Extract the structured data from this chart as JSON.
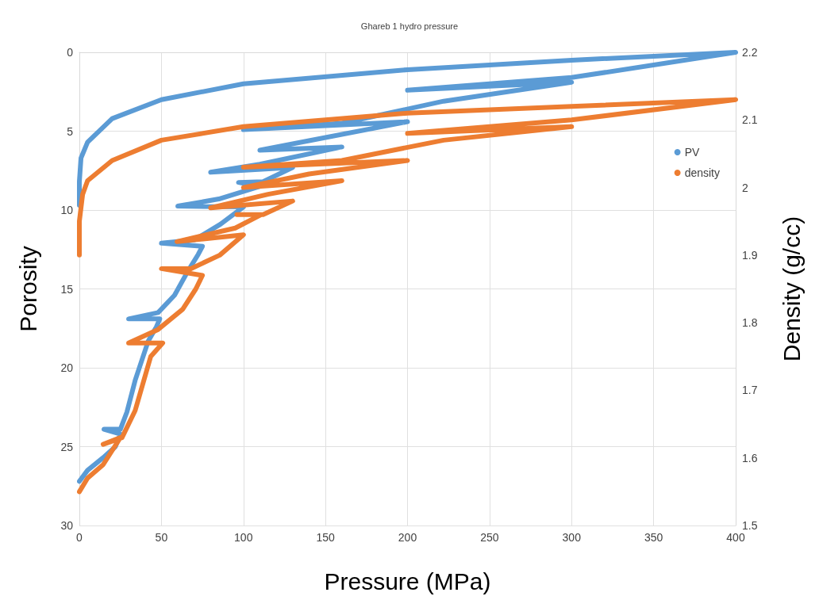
{
  "chart_data": {
    "type": "line",
    "title": "Ghareb 1 hydro pressure",
    "xlabel": "Pressure (MPa)",
    "ylabel": "Porosity",
    "y2label": "Density (g/cc)",
    "xlim": [
      0,
      400
    ],
    "xticks": [
      0,
      50,
      100,
      150,
      200,
      250,
      300,
      350,
      400
    ],
    "ylim": [
      30,
      0
    ],
    "yticks": [
      0,
      5,
      10,
      15,
      20,
      25,
      30
    ],
    "y2lim": [
      1.5,
      2.2
    ],
    "y2ticks": [
      1.5,
      1.6,
      1.7,
      1.8,
      1.9,
      2,
      2.1,
      2.2
    ],
    "grid": true,
    "legend": "right",
    "marker": "none",
    "line_style": "solid",
    "series": [
      {
        "name": "PV",
        "color": "#5b9bd5",
        "x": [
          0,
          5,
          14.5,
          22,
          25,
          15,
          25,
          29,
          34,
          42,
          47,
          49,
          30,
          48,
          58,
          66,
          72.5,
          75,
          50,
          70,
          86,
          100,
          60,
          85,
          110,
          97,
          112,
          130,
          80,
          110,
          160,
          110,
          140,
          200,
          100,
          160,
          222,
          300,
          200,
          300,
          400,
          300,
          200,
          100,
          50,
          20,
          5,
          1,
          0,
          0
        ],
        "values": [
          27.2,
          26.5,
          25.7,
          25,
          24.2,
          23.9,
          23.9,
          22.8,
          20.8,
          18.3,
          17.4,
          16.9,
          16.9,
          16.5,
          15.4,
          13.9,
          12.8,
          12.3,
          12.1,
          11.9,
          10.9,
          9.8,
          9.75,
          9.3,
          8.5,
          8.25,
          8.2,
          7.3,
          7.6,
          7.1,
          6,
          6.2,
          5.6,
          4.4,
          4.9,
          4.5,
          3.1,
          1.9,
          2.4,
          1.6,
          0,
          0.5,
          1.1,
          2,
          3,
          4.2,
          5.7,
          6.7,
          8.2,
          9.7
        ]
      },
      {
        "name": "density",
        "color": "#ed7d31",
        "axis": "y2",
        "x": [
          0,
          5,
          14.5,
          25,
          14.5,
          26,
          34,
          43.5,
          50.8,
          30,
          48,
          63,
          71,
          75,
          50,
          68,
          85.6,
          100,
          59.5,
          95,
          111,
          96,
          112,
          130,
          80,
          115,
          160,
          100,
          140,
          200,
          100,
          160,
          222,
          300,
          200,
          300,
          400,
          300,
          200,
          150,
          100,
          50,
          20,
          5,
          2,
          0,
          0
        ],
        "values": [
          1.55,
          1.57,
          1.59,
          1.63,
          1.62,
          1.63,
          1.67,
          1.75,
          1.77,
          1.77,
          1.79,
          1.82,
          1.85,
          1.87,
          1.88,
          1.88,
          1.9,
          1.93,
          1.92,
          1.94,
          1.96,
          1.96,
          1.96,
          1.98,
          1.97,
          1.99,
          2.01,
          2,
          2.02,
          2.04,
          2.03,
          2.04,
          2.07,
          2.09,
          2.08,
          2.1,
          2.13,
          2.12,
          2.11,
          2.1,
          2.09,
          2.07,
          2.04,
          2.01,
          1.99,
          1.95,
          1.9
        ]
      }
    ]
  }
}
